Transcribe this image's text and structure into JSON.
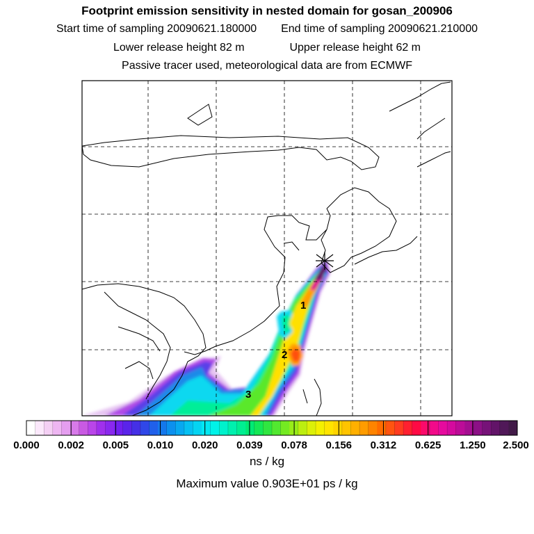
{
  "header": {
    "title": "Footprint emission sensitivity in nested domain for gosan_200906",
    "start_label": "Start time of sampling 20090621.180000",
    "end_label": "End time of sampling 20090621.210000",
    "lower_label": "Lower release height   82 m",
    "upper_label": "Upper release height   62 m",
    "info": "Passive tracer used, meteorological data are from ECMWF"
  },
  "map": {
    "labels": [
      "1",
      "2",
      "3"
    ],
    "release_marker": "release-site-star"
  },
  "colorbar": {
    "ticks": [
      "0.000",
      "0.002",
      "0.005",
      "0.010",
      "0.020",
      "0.039",
      "0.078",
      "0.156",
      "0.312",
      "0.625",
      "1.250",
      "2.500"
    ],
    "colors": [
      "#ffffff",
      "#fbe8fb",
      "#f4cff4",
      "#eeb6f2",
      "#e59ef0",
      "#d77ae9",
      "#c95ae3",
      "#b945e9",
      "#a030ec",
      "#8a28ee",
      "#7020f0",
      "#5a24ea",
      "#4530e6",
      "#3047e8",
      "#2060ea",
      "#1478ec",
      "#0c90ee",
      "#08a8f0",
      "#06c0f2",
      "#04d4f2",
      "#02e8f2",
      "#00f2e8",
      "#00f2cc",
      "#00f0ae",
      "#00ee92",
      "#00ea74",
      "#14e856",
      "#30e640",
      "#52e830",
      "#74ea22",
      "#98ec18",
      "#bcee10",
      "#dcf008",
      "#f4f000",
      "#ffe400",
      "#ffd400",
      "#ffc400",
      "#ffb000",
      "#ff9c00",
      "#ff8400",
      "#ff6c00",
      "#ff5410",
      "#ff3c20",
      "#ff2030",
      "#ff0a44",
      "#fa0a6a",
      "#f20a8a",
      "#e60a9e",
      "#d40a9e",
      "#bc0c98",
      "#a40e90",
      "#8c1086",
      "#761278",
      "#621468",
      "#501858",
      "#421a48"
    ],
    "units": "ns / kg",
    "max_label": "Maximum value  0.903E+01 ps / kg"
  }
}
